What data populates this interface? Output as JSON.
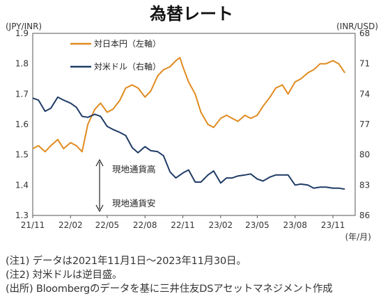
{
  "chart_data": {
    "type": "line",
    "title": "為替レート",
    "left_axis_label": "(JPY/INR)",
    "right_axis_label": "(INR/USD)",
    "x_unit_label": "(年/月)",
    "x_ticks": [
      "21/11",
      "22/02",
      "22/05",
      "22/08",
      "22/11",
      "23/02",
      "23/05",
      "23/08",
      "23/11"
    ],
    "left_ticks": [
      "1.3",
      "1.4",
      "1.5",
      "1.6",
      "1.7",
      "1.8",
      "1.9"
    ],
    "right_ticks": [
      "68",
      "71",
      "74",
      "77",
      "80",
      "83",
      "86"
    ],
    "left_ylim": [
      1.3,
      1.9
    ],
    "right_ylim_inverted": [
      68,
      86
    ],
    "series": [
      {
        "name": "対日本円（左軸）",
        "axis": "left",
        "color": "#e08a1e",
        "x": [
          "2021-11-01",
          "2021-11-15",
          "2021-12-01",
          "2021-12-15",
          "2022-01-01",
          "2022-01-15",
          "2022-02-01",
          "2022-02-15",
          "2022-03-01",
          "2022-03-15",
          "2022-04-01",
          "2022-04-15",
          "2022-05-01",
          "2022-05-15",
          "2022-06-01",
          "2022-06-15",
          "2022-07-01",
          "2022-07-15",
          "2022-08-01",
          "2022-08-15",
          "2022-09-01",
          "2022-09-15",
          "2022-10-01",
          "2022-10-15",
          "2022-10-25",
          "2022-11-01",
          "2022-11-15",
          "2022-12-01",
          "2022-12-15",
          "2023-01-01",
          "2023-01-15",
          "2023-02-01",
          "2023-02-15",
          "2023-03-01",
          "2023-03-15",
          "2023-04-01",
          "2023-04-15",
          "2023-05-01",
          "2023-05-15",
          "2023-06-01",
          "2023-06-15",
          "2023-07-01",
          "2023-07-15",
          "2023-08-01",
          "2023-08-15",
          "2023-09-01",
          "2023-09-15",
          "2023-10-01",
          "2023-10-15",
          "2023-11-01",
          "2023-11-15",
          "2023-11-30"
        ],
        "y": [
          1.52,
          1.53,
          1.51,
          1.53,
          1.55,
          1.52,
          1.54,
          1.53,
          1.51,
          1.6,
          1.65,
          1.67,
          1.64,
          1.65,
          1.68,
          1.72,
          1.73,
          1.72,
          1.69,
          1.71,
          1.76,
          1.78,
          1.79,
          1.81,
          1.82,
          1.79,
          1.74,
          1.7,
          1.64,
          1.6,
          1.59,
          1.62,
          1.63,
          1.62,
          1.61,
          1.63,
          1.62,
          1.63,
          1.66,
          1.69,
          1.72,
          1.73,
          1.7,
          1.74,
          1.75,
          1.77,
          1.78,
          1.8,
          1.8,
          1.81,
          1.8,
          1.77
        ]
      },
      {
        "name": "対米ドル（右軸）",
        "axis": "right",
        "color": "#1f3b66",
        "x": [
          "2021-11-01",
          "2021-11-15",
          "2021-12-01",
          "2021-12-15",
          "2022-01-01",
          "2022-01-15",
          "2022-02-01",
          "2022-02-15",
          "2022-03-01",
          "2022-03-15",
          "2022-04-01",
          "2022-04-15",
          "2022-05-01",
          "2022-05-15",
          "2022-06-01",
          "2022-06-15",
          "2022-07-01",
          "2022-07-15",
          "2022-08-01",
          "2022-08-15",
          "2022-09-01",
          "2022-09-15",
          "2022-10-01",
          "2022-10-15",
          "2022-11-01",
          "2022-11-15",
          "2022-12-01",
          "2022-12-15",
          "2023-01-01",
          "2023-01-15",
          "2023-02-01",
          "2023-02-15",
          "2023-03-01",
          "2023-03-15",
          "2023-04-01",
          "2023-04-15",
          "2023-05-01",
          "2023-05-15",
          "2023-06-01",
          "2023-06-15",
          "2023-07-01",
          "2023-07-15",
          "2023-08-01",
          "2023-08-15",
          "2023-09-01",
          "2023-09-15",
          "2023-10-01",
          "2023-10-15",
          "2023-11-01",
          "2023-11-15",
          "2023-11-30"
        ],
        "y": [
          74.4,
          74.6,
          75.7,
          75.4,
          74.3,
          74.6,
          74.9,
          75.3,
          76.2,
          76.3,
          76.0,
          76.2,
          77.2,
          77.5,
          77.8,
          78.1,
          79.3,
          79.8,
          79.2,
          79.6,
          79.7,
          80.1,
          81.7,
          82.3,
          81.8,
          81.5,
          82.7,
          82.7,
          82.0,
          81.6,
          82.8,
          82.3,
          82.3,
          82.1,
          82.0,
          81.9,
          82.4,
          82.6,
          82.2,
          82.0,
          82.0,
          82.0,
          83.0,
          82.9,
          83.0,
          83.3,
          83.2,
          83.2,
          83.3,
          83.3,
          83.4
        ]
      }
    ],
    "annotations": {
      "upper": "現地通貨高",
      "lower": "現地通貨安"
    }
  },
  "notes": [
    "(注1) データは2021年11月1日～2023年11月30日。",
    "(注2) 対米ドルは逆目盛。",
    "(出所) Bloombergのデータを基に三井住友DSアセットマネジメント作成"
  ]
}
